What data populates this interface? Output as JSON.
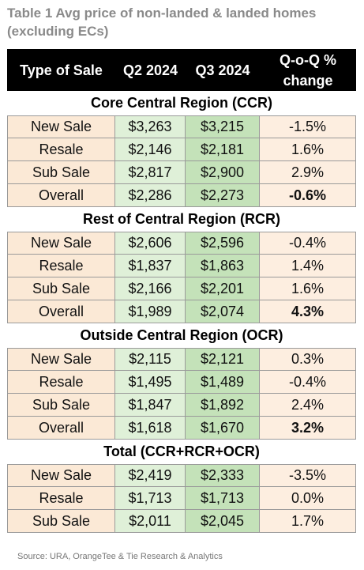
{
  "title": "Table 1 Avg price of non-landed & landed homes (excluding ECs)",
  "header": {
    "type": "Type of Sale",
    "q2": "Q2 2024",
    "q3": "Q3 2024",
    "qoq": "Q-o-Q % change"
  },
  "regions": [
    {
      "name": "Core Central Region (CCR)",
      "rows": [
        {
          "type": "New Sale",
          "q2": "$3,263",
          "q3": "$3,215",
          "chg": "-1.5%"
        },
        {
          "type": "Resale",
          "q2": "$2,146",
          "q3": "$2,181",
          "chg": "1.6%"
        },
        {
          "type": "Sub Sale",
          "q2": "$2,817",
          "q3": "$2,900",
          "chg": "2.9%"
        },
        {
          "type": "Overall",
          "q2": "$2,286",
          "q3": "$2,273",
          "chg": "-0.6%"
        }
      ]
    },
    {
      "name": "Rest of Central Region (RCR)",
      "rows": [
        {
          "type": "New Sale",
          "q2": "$2,606",
          "q3": "$2,596",
          "chg": "-0.4%"
        },
        {
          "type": "Resale",
          "q2": "$1,837",
          "q3": "$1,863",
          "chg": "1.4%"
        },
        {
          "type": "Sub Sale",
          "q2": "$2,166",
          "q3": "$2,201",
          "chg": "1.6%"
        },
        {
          "type": "Overall",
          "q2": "$1,989",
          "q3": "$2,074",
          "chg": "4.3%"
        }
      ]
    },
    {
      "name": "Outside Central Region (OCR)",
      "rows": [
        {
          "type": "New Sale",
          "q2": "$2,115",
          "q3": "$2,121",
          "chg": "0.3%"
        },
        {
          "type": "Resale",
          "q2": "$1,495",
          "q3": "$1,489",
          "chg": "-0.4%"
        },
        {
          "type": "Sub Sale",
          "q2": "$1,847",
          "q3": "$1,892",
          "chg": "2.4%"
        },
        {
          "type": "Overall",
          "q2": "$1,618",
          "q3": "$1,670",
          "chg": "3.2%"
        }
      ]
    },
    {
      "name": "Total (CCR+RCR+OCR)",
      "rows": [
        {
          "type": "New Sale",
          "q2": "$2,419",
          "q3": "$2,333",
          "chg": "-3.5%"
        },
        {
          "type": "Resale",
          "q2": "$1,713",
          "q3": "$1,713",
          "chg": "0.0%"
        },
        {
          "type": "Sub Sale",
          "q2": "$2,011",
          "q3": "$2,045",
          "chg": "1.7%"
        }
      ]
    }
  ],
  "footer": "Source: URA, OrangeTee & Tie Research & Analytics",
  "watermark": {
    "brand": "OrangeTee",
    "sub": "Research & Analytics",
    "logo_icon": "orangetee-logo-icon"
  }
}
